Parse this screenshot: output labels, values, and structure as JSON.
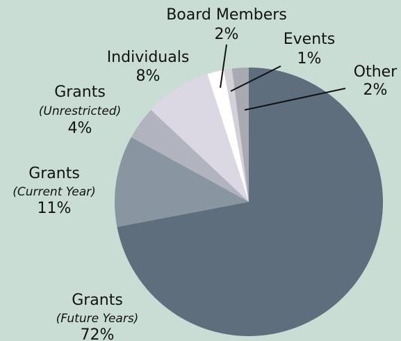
{
  "chart_data": {
    "type": "pie",
    "categories": [
      "Grants",
      "Grants",
      "Grants",
      "Individuals",
      "Board Members",
      "Events",
      "Other"
    ],
    "details": [
      "(Future Years)",
      "(Current Year)",
      "(Unrestricted)",
      null,
      null,
      null,
      null
    ],
    "values": [
      72,
      11,
      4,
      8,
      2,
      1,
      2
    ],
    "value_labels": [
      "72%",
      "11%",
      "4%",
      "8%",
      "2%",
      "1%",
      "2%"
    ],
    "colors": [
      "#5e6e7c",
      "#8a95a2",
      "#b1b4bf",
      "#dcd8e3",
      "#ffffff",
      "#d3d0d9",
      "#a9a9b1"
    ]
  }
}
